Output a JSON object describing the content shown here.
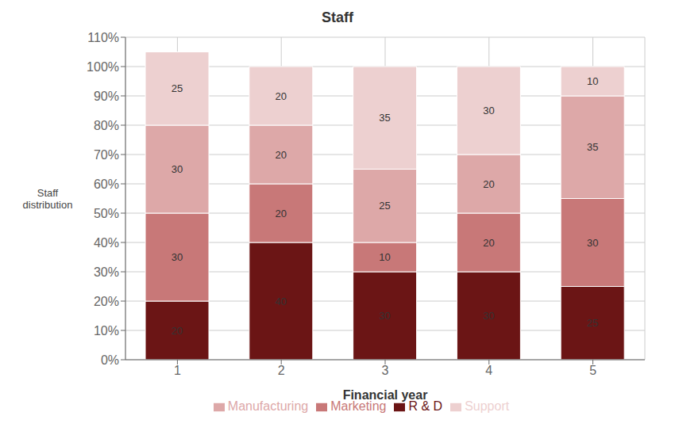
{
  "chart_data": {
    "type": "bar",
    "title": "Staff",
    "xlabel": "Financial year",
    "ylabel": "Staff\ndistribution",
    "categories": [
      1,
      2,
      3,
      4,
      5
    ],
    "series": [
      {
        "name": "R & D",
        "color": "#6B1515",
        "values": [
          20,
          40,
          30,
          30,
          25
        ]
      },
      {
        "name": "Marketing",
        "color": "#C87878",
        "values": [
          30,
          20,
          10,
          20,
          30
        ]
      },
      {
        "name": "Manufacturing",
        "color": "#DDA8A8",
        "values": [
          30,
          20,
          25,
          20,
          35
        ]
      },
      {
        "name": "Support",
        "color": "#EDD0D0",
        "values": [
          25,
          20,
          35,
          30,
          10
        ]
      }
    ],
    "ylim": [
      0,
      110
    ],
    "yticks": [
      {
        "value": 0,
        "label": "0%"
      },
      {
        "value": 10,
        "label": "10%"
      },
      {
        "value": 20,
        "label": "20%"
      },
      {
        "value": 30,
        "label": "30%"
      },
      {
        "value": 40,
        "label": "40%"
      },
      {
        "value": 50,
        "label": "50%"
      },
      {
        "value": 60,
        "label": "60%"
      },
      {
        "value": 70,
        "label": "70%"
      },
      {
        "value": 80,
        "label": "80%"
      },
      {
        "value": 90,
        "label": "90%"
      },
      {
        "value": 100,
        "label": "100%"
      },
      {
        "value": 110,
        "label": "110%"
      }
    ],
    "stacked": true,
    "data_labels": true,
    "grid": true,
    "legend": "bottom"
  }
}
